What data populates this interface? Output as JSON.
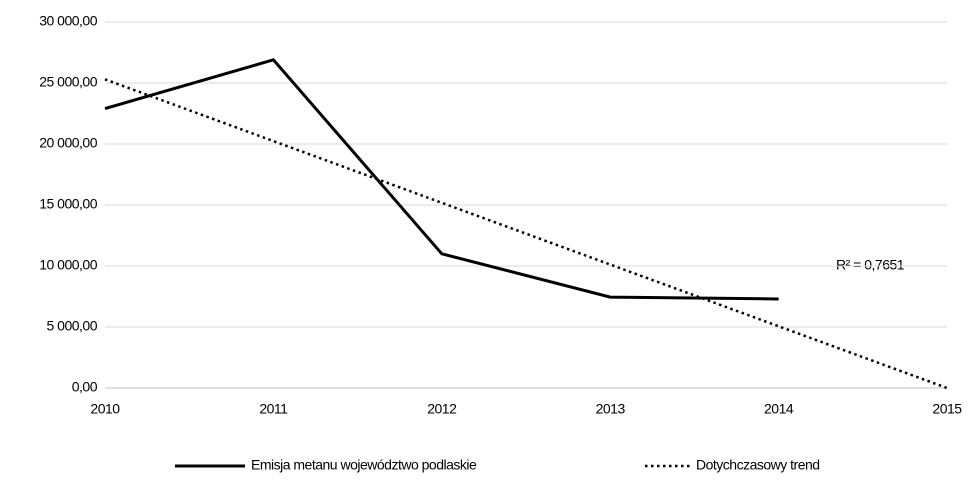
{
  "chart_data": {
    "type": "line",
    "series": [
      {
        "name": "Emisja metanu województwo podlaskie",
        "color": "#000000",
        "style": "solid",
        "x": [
          2010,
          2011,
          2012,
          2013,
          2014
        ],
        "values": [
          22900,
          26900,
          11000,
          7450,
          7300
        ]
      },
      {
        "name": "Dotychczasowy trend",
        "color": "#000000",
        "style": "dotted",
        "x": [
          2010,
          2015
        ],
        "values": [
          25300,
          0
        ]
      }
    ],
    "xlim": [
      2010,
      2015
    ],
    "xticks": [
      2010,
      2011,
      2012,
      2013,
      2014,
      2015
    ],
    "ylim": [
      0,
      30000
    ],
    "yticks": [
      {
        "value": 0,
        "label": "0,00"
      },
      {
        "value": 5000,
        "label": "5 000,00"
      },
      {
        "value": 10000,
        "label": "10 000,00"
      },
      {
        "value": 15000,
        "label": "15 000,00"
      },
      {
        "value": 20000,
        "label": "20 000,00"
      },
      {
        "value": 25000,
        "label": "25 000,00"
      },
      {
        "value": 30000,
        "label": "30 000,00"
      }
    ],
    "grid": true,
    "legend": "bottom",
    "annotation": "R² = 0,7651"
  }
}
